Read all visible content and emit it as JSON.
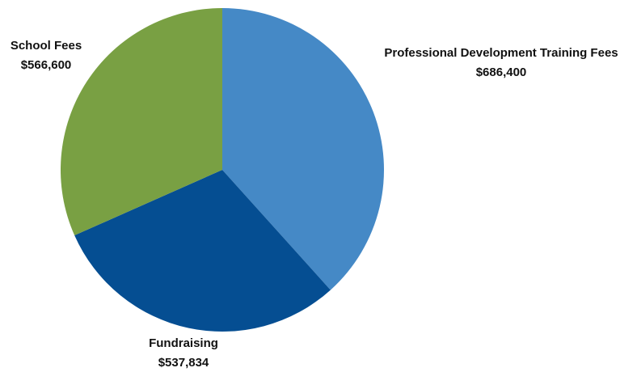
{
  "chart_data": {
    "type": "pie",
    "title": "",
    "slices": [
      {
        "label": "Professional Development Training Fees",
        "value_label": "$686,400",
        "value": 686400,
        "color": "#4589c6"
      },
      {
        "label": "Fundraising",
        "value_label": "$537,834",
        "value": 537834,
        "color": "#054e92"
      },
      {
        "label": "School Fees",
        "value_label": "$566,600",
        "value": 566600,
        "color": "#79a043"
      }
    ],
    "start": "12 o'clock",
    "direction": "clockwise",
    "legend": "none",
    "labels": "outside"
  }
}
